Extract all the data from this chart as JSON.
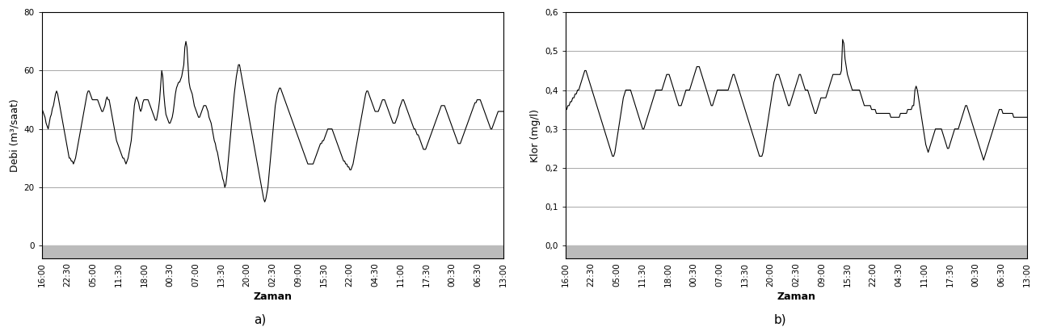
{
  "x_labels": [
    "16:00",
    "22:30",
    "05:00",
    "11:30",
    "18:00",
    "00:30",
    "07:00",
    "13:30",
    "20:00",
    "02:30",
    "09:00",
    "15:30",
    "22:00",
    "04:30",
    "11:00",
    "17:30",
    "00:30",
    "06:30",
    "13:00"
  ],
  "debi_ylim": [
    0,
    80
  ],
  "debi_yticks": [
    0,
    20,
    40,
    60,
    80
  ],
  "klor_ylim": [
    0.0,
    0.6
  ],
  "klor_yticks": [
    0.0,
    0.1,
    0.2,
    0.3,
    0.4,
    0.5,
    0.6
  ],
  "ylabel_debi": "Debi (m³/saat)",
  "ylabel_klor": "Klor (mg/l)",
  "xlabel": "Zaman",
  "label_a": "a)",
  "label_b": "b)",
  "line_color": "#000000",
  "line_width": 0.8,
  "bg_color": "#ffffff",
  "gray_band_color": "#bbbbbb",
  "label_fontsize": 9,
  "tick_fontsize": 7.5,
  "debi_data": [
    47,
    46,
    45,
    44,
    42,
    41,
    40,
    42,
    44,
    45,
    47,
    48,
    50,
    52,
    53,
    52,
    50,
    48,
    46,
    44,
    42,
    40,
    38,
    36,
    34,
    32,
    30,
    30,
    29,
    29,
    28,
    29,
    30,
    32,
    34,
    36,
    38,
    40,
    42,
    44,
    46,
    48,
    50,
    52,
    53,
    53,
    52,
    51,
    50,
    50,
    50,
    50,
    50,
    50,
    49,
    48,
    47,
    46,
    46,
    47,
    48,
    50,
    51,
    50,
    50,
    48,
    46,
    44,
    42,
    40,
    38,
    36,
    35,
    34,
    33,
    32,
    31,
    30,
    30,
    29,
    28,
    29,
    30,
    32,
    34,
    36,
    40,
    44,
    48,
    50,
    51,
    50,
    49,
    47,
    46,
    47,
    49,
    50,
    50,
    50,
    50,
    50,
    49,
    48,
    47,
    46,
    45,
    44,
    43,
    43,
    45,
    47,
    50,
    55,
    60,
    58,
    52,
    48,
    45,
    44,
    43,
    42,
    42,
    43,
    44,
    46,
    49,
    52,
    54,
    55,
    56,
    56,
    57,
    58,
    60,
    62,
    68,
    70,
    68,
    62,
    56,
    54,
    53,
    52,
    50,
    48,
    47,
    46,
    45,
    44,
    44,
    45,
    46,
    47,
    48,
    48,
    48,
    47,
    46,
    44,
    43,
    42,
    40,
    38,
    36,
    35,
    33,
    32,
    30,
    28,
    26,
    25,
    23,
    22,
    20,
    21,
    24,
    28,
    32,
    36,
    40,
    44,
    48,
    52,
    55,
    58,
    60,
    62,
    62,
    60,
    58,
    56,
    54,
    52,
    50,
    48,
    46,
    44,
    42,
    40,
    38,
    36,
    34,
    32,
    30,
    28,
    26,
    24,
    22,
    20,
    18,
    16,
    15,
    16,
    18,
    20,
    24,
    28,
    32,
    36,
    40,
    44,
    48,
    50,
    52,
    53,
    54,
    54,
    53,
    52,
    51,
    50,
    49,
    48,
    47,
    46,
    45,
    44,
    43,
    42,
    41,
    40,
    39,
    38,
    37,
    36,
    35,
    34,
    33,
    32,
    31,
    30,
    29,
    28,
    28,
    28,
    28,
    28,
    28,
    29,
    30,
    31,
    32,
    33,
    34,
    35,
    35,
    36,
    36,
    37,
    38,
    39,
    40,
    40,
    40,
    40,
    40,
    39,
    38,
    37,
    36,
    35,
    34,
    33,
    32,
    31,
    30,
    29,
    29,
    28,
    28,
    27,
    27,
    26,
    26,
    27,
    28,
    30,
    32,
    34,
    36,
    38,
    40,
    42,
    44,
    46,
    48,
    50,
    52,
    53,
    53,
    52,
    51,
    50,
    49,
    48,
    47,
    46,
    46,
    46,
    46,
    47,
    48,
    49,
    50,
    50,
    50,
    49,
    48,
    47,
    46,
    45,
    44,
    43,
    42,
    42,
    42,
    43,
    44,
    45,
    47,
    48,
    49,
    50,
    50,
    49,
    48,
    47,
    46,
    45,
    44,
    43,
    42,
    41,
    40,
    40,
    39,
    38,
    38,
    37,
    36,
    35,
    34,
    33,
    33,
    33,
    34,
    35,
    36,
    37,
    38,
    39,
    40,
    41,
    42,
    43,
    44,
    45,
    46,
    47,
    48,
    48,
    48,
    48,
    47,
    46,
    45,
    44,
    43,
    42,
    41,
    40,
    39,
    38,
    37,
    36,
    35,
    35,
    35,
    36,
    37,
    38,
    39,
    40,
    41,
    42,
    43,
    44,
    45,
    46,
    47,
    48,
    49,
    49,
    50,
    50,
    50,
    50,
    49,
    48,
    47,
    46,
    45,
    44,
    43,
    42,
    41,
    40,
    40,
    41,
    42,
    43,
    44,
    45,
    46,
    46,
    46,
    46,
    46,
    46
  ],
  "klor_data": [
    0.35,
    0.35,
    0.36,
    0.36,
    0.37,
    0.37,
    0.38,
    0.38,
    0.39,
    0.39,
    0.4,
    0.4,
    0.41,
    0.42,
    0.43,
    0.44,
    0.45,
    0.45,
    0.44,
    0.43,
    0.42,
    0.41,
    0.4,
    0.39,
    0.38,
    0.37,
    0.36,
    0.35,
    0.34,
    0.33,
    0.32,
    0.31,
    0.3,
    0.29,
    0.28,
    0.27,
    0.26,
    0.25,
    0.24,
    0.23,
    0.23,
    0.24,
    0.26,
    0.28,
    0.3,
    0.32,
    0.34,
    0.36,
    0.38,
    0.39,
    0.4,
    0.4,
    0.4,
    0.4,
    0.4,
    0.39,
    0.38,
    0.37,
    0.36,
    0.35,
    0.34,
    0.33,
    0.32,
    0.31,
    0.3,
    0.3,
    0.31,
    0.32,
    0.33,
    0.34,
    0.35,
    0.36,
    0.37,
    0.38,
    0.39,
    0.4,
    0.4,
    0.4,
    0.4,
    0.4,
    0.4,
    0.41,
    0.42,
    0.43,
    0.44,
    0.44,
    0.44,
    0.43,
    0.42,
    0.41,
    0.4,
    0.39,
    0.38,
    0.37,
    0.36,
    0.36,
    0.36,
    0.37,
    0.38,
    0.39,
    0.4,
    0.4,
    0.4,
    0.4,
    0.41,
    0.42,
    0.43,
    0.44,
    0.45,
    0.46,
    0.46,
    0.46,
    0.45,
    0.44,
    0.43,
    0.42,
    0.41,
    0.4,
    0.39,
    0.38,
    0.37,
    0.36,
    0.36,
    0.37,
    0.38,
    0.39,
    0.4,
    0.4,
    0.4,
    0.4,
    0.4,
    0.4,
    0.4,
    0.4,
    0.4,
    0.4,
    0.41,
    0.42,
    0.43,
    0.44,
    0.44,
    0.43,
    0.42,
    0.41,
    0.4,
    0.39,
    0.38,
    0.37,
    0.36,
    0.35,
    0.34,
    0.33,
    0.32,
    0.31,
    0.3,
    0.29,
    0.28,
    0.27,
    0.26,
    0.25,
    0.24,
    0.23,
    0.23,
    0.23,
    0.24,
    0.26,
    0.28,
    0.3,
    0.32,
    0.34,
    0.36,
    0.38,
    0.4,
    0.42,
    0.43,
    0.44,
    0.44,
    0.44,
    0.43,
    0.42,
    0.41,
    0.4,
    0.39,
    0.38,
    0.37,
    0.36,
    0.36,
    0.37,
    0.38,
    0.39,
    0.4,
    0.41,
    0.42,
    0.43,
    0.44,
    0.44,
    0.43,
    0.42,
    0.41,
    0.4,
    0.4,
    0.4,
    0.39,
    0.38,
    0.37,
    0.36,
    0.35,
    0.34,
    0.34,
    0.35,
    0.36,
    0.37,
    0.38,
    0.38,
    0.38,
    0.38,
    0.38,
    0.39,
    0.4,
    0.41,
    0.42,
    0.43,
    0.44,
    0.44,
    0.44,
    0.44,
    0.44,
    0.44,
    0.44,
    0.45,
    0.53,
    0.52,
    0.48,
    0.46,
    0.44,
    0.43,
    0.42,
    0.41,
    0.4,
    0.4,
    0.4,
    0.4,
    0.4,
    0.4,
    0.4,
    0.39,
    0.38,
    0.37,
    0.36,
    0.36,
    0.36,
    0.36,
    0.36,
    0.36,
    0.35,
    0.35,
    0.35,
    0.35,
    0.34,
    0.34,
    0.34,
    0.34,
    0.34,
    0.34,
    0.34,
    0.34,
    0.34,
    0.34,
    0.34,
    0.34,
    0.33,
    0.33,
    0.33,
    0.33,
    0.33,
    0.33,
    0.33,
    0.33,
    0.34,
    0.34,
    0.34,
    0.34,
    0.34,
    0.34,
    0.35,
    0.35,
    0.35,
    0.35,
    0.36,
    0.36,
    0.4,
    0.41,
    0.4,
    0.38,
    0.36,
    0.34,
    0.32,
    0.3,
    0.28,
    0.26,
    0.25,
    0.24,
    0.25,
    0.26,
    0.27,
    0.28,
    0.29,
    0.3,
    0.3,
    0.3,
    0.3,
    0.3,
    0.3,
    0.29,
    0.28,
    0.27,
    0.26,
    0.25,
    0.25,
    0.26,
    0.27,
    0.28,
    0.29,
    0.3,
    0.3,
    0.3,
    0.3,
    0.31,
    0.32,
    0.33,
    0.34,
    0.35,
    0.36,
    0.36,
    0.35,
    0.34,
    0.33,
    0.32,
    0.31,
    0.3,
    0.29,
    0.28,
    0.27,
    0.26,
    0.25,
    0.24,
    0.23,
    0.22,
    0.23,
    0.24,
    0.25,
    0.26,
    0.27,
    0.28,
    0.29,
    0.3,
    0.31,
    0.32,
    0.33,
    0.34,
    0.35,
    0.35,
    0.35,
    0.34,
    0.34,
    0.34,
    0.34,
    0.34,
    0.34,
    0.34,
    0.34,
    0.34,
    0.33,
    0.33,
    0.33,
    0.33,
    0.33,
    0.33,
    0.33,
    0.33,
    0.33,
    0.33,
    0.33,
    0.33
  ]
}
